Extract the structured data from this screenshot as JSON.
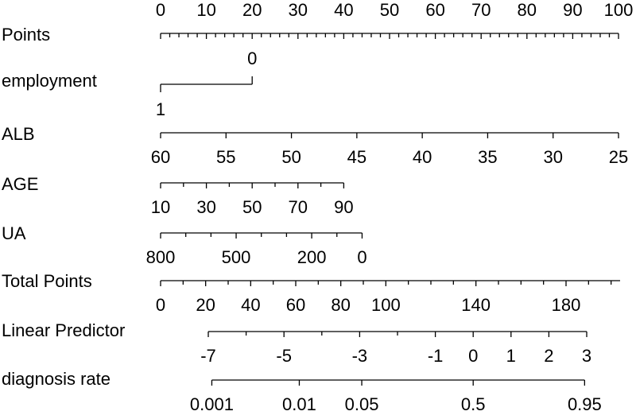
{
  "chart_data": {
    "type": "nomogram",
    "rows": [
      {
        "type": "points",
        "label": "Points",
        "xlim": [
          0,
          100
        ],
        "ticks": [
          0,
          10,
          20,
          30,
          40,
          50,
          60,
          70,
          80,
          90,
          100
        ],
        "minor_ticks": [
          2,
          4,
          6,
          8,
          12,
          14,
          16,
          18,
          22,
          24,
          26,
          28,
          32,
          34,
          36,
          38,
          42,
          44,
          46,
          48,
          52,
          54,
          56,
          58,
          62,
          64,
          66,
          68,
          72,
          74,
          76,
          78,
          82,
          84,
          86,
          88,
          92,
          94,
          96,
          98
        ]
      },
      {
        "type": "categorical",
        "label": "employment",
        "levels": [
          "1",
          "0"
        ],
        "points": [
          0,
          20
        ]
      },
      {
        "type": "variable",
        "label": "ALB",
        "xlim": [
          60,
          25
        ],
        "points": [
          0,
          100
        ],
        "ticks": [
          60,
          55,
          50,
          45,
          40,
          35,
          30,
          25
        ],
        "minor_ticks": []
      },
      {
        "type": "variable",
        "label": "AGE",
        "xlim": [
          10,
          90
        ],
        "points": [
          0,
          40
        ],
        "ticks": [
          10,
          30,
          50,
          70,
          90
        ],
        "minor_ticks": [
          20,
          40,
          60,
          80
        ]
      },
      {
        "type": "variable",
        "label": "UA",
        "xlim": [
          800,
          0
        ],
        "points": [
          0,
          44
        ],
        "ticks": [
          800,
          500,
          200,
          0
        ],
        "minor_ticks": [
          700,
          600,
          400,
          300,
          100
        ]
      },
      {
        "type": "total",
        "label": "Total Points",
        "xlim": [
          0,
          204
        ],
        "ticks": [
          0,
          20,
          40,
          60,
          80,
          100,
          140,
          180
        ],
        "minor_ticks": [
          10,
          30,
          50,
          70,
          90,
          110,
          120,
          130,
          150,
          160,
          170,
          190,
          200
        ]
      },
      {
        "type": "linear",
        "label": "Linear Predictor",
        "xlim": [
          -7,
          3
        ],
        "ticks": [
          -7,
          -5,
          -3,
          -1,
          0,
          1,
          2,
          3
        ],
        "minor_ticks": [
          -6,
          -4,
          -2
        ]
      },
      {
        "type": "logit",
        "label": "diagnosis rate",
        "xlim": [
          0.001,
          0.95
        ],
        "ticks": [
          0.001,
          0.01,
          0.05,
          0.5,
          0.95
        ],
        "minor_ticks": []
      }
    ]
  }
}
